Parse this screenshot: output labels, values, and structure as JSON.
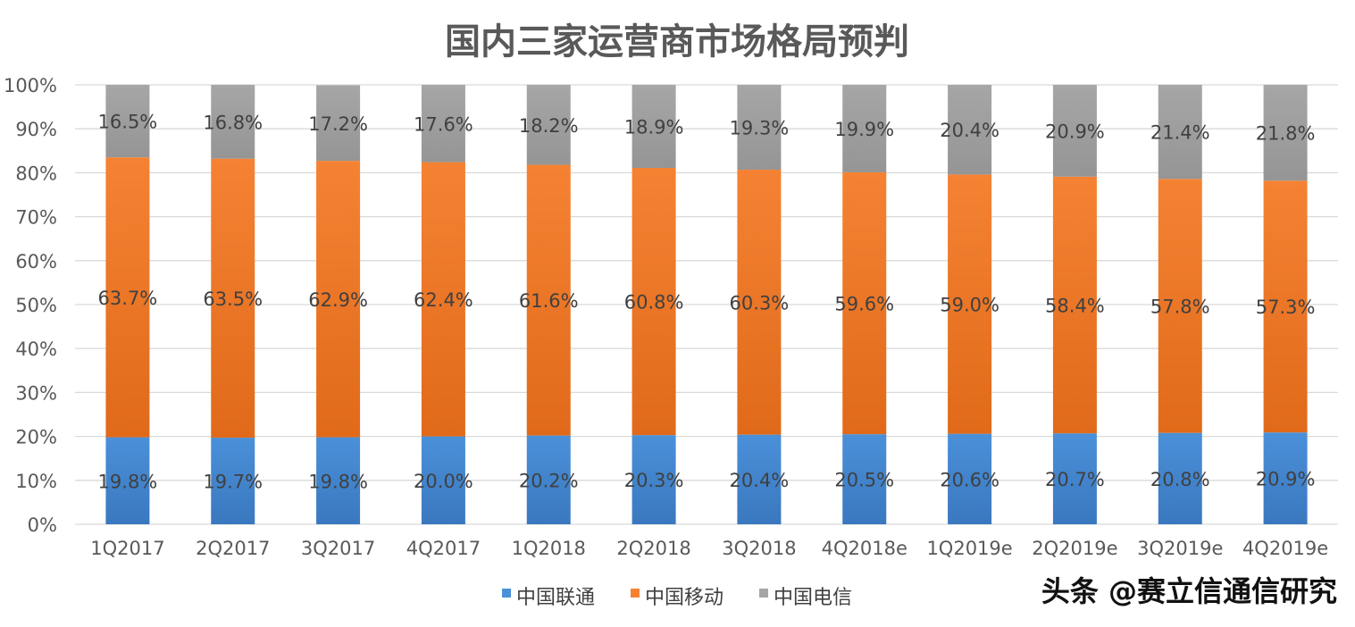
{
  "chart_data": {
    "type": "bar",
    "stacked": true,
    "percent_stacked": true,
    "title": "国内三家运营商市场格局预判",
    "categories": [
      "1Q2017",
      "2Q2017",
      "3Q2017",
      "4Q2017",
      "1Q2018",
      "2Q2018",
      "3Q2018",
      "4Q2018e",
      "1Q2019e",
      "2Q2019e",
      "3Q2019e",
      "4Q2019e"
    ],
    "series": [
      {
        "name": "中国联通",
        "values": [
          19.8,
          19.7,
          19.8,
          20.0,
          20.2,
          20.3,
          20.4,
          20.5,
          20.6,
          20.7,
          20.8,
          20.9
        ],
        "labels": [
          "19.8%",
          "19.7%",
          "19.8%",
          "20.0%",
          "20.2%",
          "20.3%",
          "20.4%",
          "20.5%",
          "20.6%",
          "20.7%",
          "20.8%",
          "20.9%"
        ],
        "color": "#4a90d9",
        "color_dark": "#3a78bf"
      },
      {
        "name": "中国移动",
        "values": [
          63.7,
          63.5,
          62.9,
          62.4,
          61.6,
          60.8,
          60.3,
          59.6,
          59.0,
          58.4,
          57.8,
          57.3
        ],
        "labels": [
          "63.7%",
          "63.5%",
          "62.9%",
          "62.4%",
          "61.6%",
          "60.8%",
          "60.3%",
          "59.6%",
          "59.0%",
          "58.4%",
          "57.8%",
          "57.3%"
        ],
        "color": "#f58233",
        "color_dark": "#e06a1a"
      },
      {
        "name": "中国电信",
        "values": [
          16.5,
          16.8,
          17.2,
          17.6,
          18.2,
          18.9,
          19.3,
          19.9,
          20.4,
          20.9,
          21.4,
          21.8
        ],
        "labels": [
          "16.5%",
          "16.8%",
          "17.2%",
          "17.6%",
          "18.2%",
          "18.9%",
          "19.3%",
          "19.9%",
          "20.4%",
          "20.9%",
          "21.4%",
          "21.8%"
        ],
        "color": "#a6a6a6",
        "color_dark": "#959595"
      }
    ],
    "ylim": [
      0,
      100
    ],
    "yticks": [
      "0%",
      "10%",
      "20%",
      "30%",
      "40%",
      "50%",
      "60%",
      "70%",
      "80%",
      "90%",
      "100%"
    ],
    "grid": true,
    "legend_position": "bottom"
  },
  "watermark": "头条 @赛立信通信研究"
}
